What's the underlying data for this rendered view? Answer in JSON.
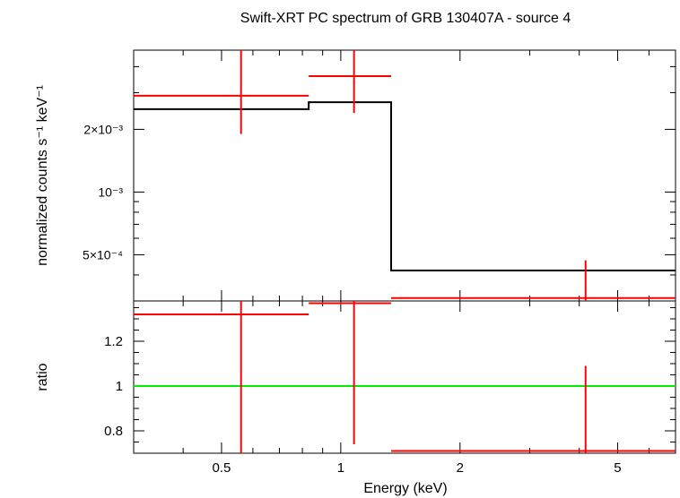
{
  "chart_data": [
    {
      "type": "scatter",
      "panel": "spectrum",
      "title": "Swift-XRT PC spectrum of GRB 130407A - source 4",
      "ylabel": "normalized counts s⁻¹ keV⁻¹",
      "xscale": "log",
      "yscale": "log",
      "xlim": [
        0.3,
        7.0
      ],
      "ylim": [
        0.0003,
        0.0048
      ],
      "y_tick_labels": [
        "5×10⁻⁴",
        "10⁻³",
        "2×10⁻³"
      ],
      "y_tick_values": [
        0.0005,
        0.001,
        0.002
      ],
      "series": [
        {
          "kind": "data",
          "color": "#ff0000",
          "points": [
            {
              "x": 0.56,
              "xerr": [
                0.3,
                0.83
              ],
              "y": 0.0029,
              "yerr": [
                0.0019,
                0.0048
              ]
            },
            {
              "x": 1.08,
              "xerr": [
                0.83,
                1.34
              ],
              "y": 0.0036,
              "yerr": [
                0.0024,
                0.0048
              ]
            },
            {
              "x": 4.15,
              "xerr": [
                1.34,
                7.0
              ],
              "y": 0.00031,
              "yerr": [
                0.0003,
                0.00047
              ]
            }
          ]
        },
        {
          "kind": "model",
          "color": "#000000",
          "steps": [
            {
              "x0": 0.3,
              "x1": 0.83,
              "y": 0.0025
            },
            {
              "x0": 0.83,
              "x1": 1.34,
              "y": 0.0027
            },
            {
              "x0": 1.34,
              "x1": 7.0,
              "y": 0.00042
            }
          ]
        }
      ]
    },
    {
      "type": "scatter",
      "panel": "ratio",
      "xlabel": "Energy (keV)",
      "ylabel": "ratio",
      "xscale": "log",
      "xlim": [
        0.3,
        7.0
      ],
      "ylim": [
        0.7,
        1.38
      ],
      "x_tick_labels": [
        "0.5",
        "1",
        "2",
        "5"
      ],
      "x_tick_values": [
        0.5,
        1,
        2,
        5
      ],
      "y_tick_labels": [
        "0.8",
        "1",
        "1.2"
      ],
      "y_tick_values": [
        0.8,
        1.0,
        1.2
      ],
      "reference_line": {
        "y": 1.0,
        "color": "#00ee00"
      },
      "series": [
        {
          "kind": "ratio",
          "color": "#ff0000",
          "points": [
            {
              "x": 0.56,
              "xerr": [
                0.3,
                0.83
              ],
              "y": 1.32,
              "yerr": [
                0.7,
                1.38
              ]
            },
            {
              "x": 1.08,
              "xerr": [
                0.83,
                1.34
              ],
              "y": 1.37,
              "yerr": [
                0.74,
                1.38
              ]
            },
            {
              "x": 4.15,
              "xerr": [
                1.34,
                7.0
              ],
              "y": 0.71,
              "yerr": [
                0.7,
                1.09
              ]
            }
          ]
        }
      ]
    }
  ]
}
